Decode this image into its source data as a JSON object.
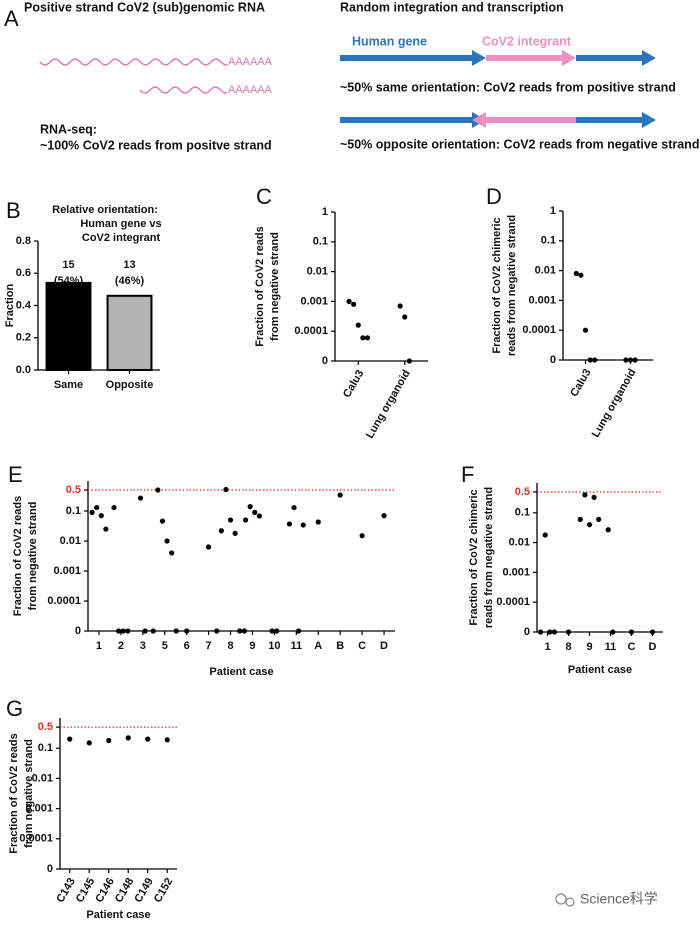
{
  "figure": {
    "diagram": {
      "panel": "A",
      "left_title": "Positive strand CoV2 (sub)genomic RNA",
      "polya": [
        "AAAAAA",
        "AAAAAA"
      ],
      "rnaseq": [
        "RNA-seq:",
        "~100% CoV2 reads from positve strand"
      ],
      "right_title": "Random integration and transcription",
      "human_gene": "Human gene",
      "integrant": "CoV2 integrant",
      "same": "~50% same orientation: CoV2 reads from positive strand",
      "opposite": "~50% opposite orientation: CoV2 reads from negative strand"
    },
    "watermark": "Science科学"
  },
  "chart_data": [
    {
      "panel": "B",
      "type": "bar",
      "subtitle": [
        "Relative orientation:",
        "Human gene vs",
        "CoV2 integrant"
      ],
      "ylabel": "Fraction",
      "categories": [
        "Same",
        "Opposite"
      ],
      "values": [
        0.54,
        0.46
      ],
      "colors": [
        "#000000",
        "#b3b3b3"
      ],
      "bar_labels": [
        [
          "15",
          "(54%)"
        ],
        [
          "13",
          "(46%)"
        ]
      ],
      "ylim": [
        0,
        0.8
      ],
      "yticks": [
        {
          "value": 0,
          "label": "0.0"
        },
        0.2,
        0.4,
        0.6,
        0.8
      ]
    },
    {
      "panel": "C",
      "type": "strip",
      "ylabel": [
        "Fraction of CoV2 reads",
        "from negative strand"
      ],
      "yscale": "log",
      "color": "#000000",
      "categories": [
        "Calu3",
        "Lung organoid"
      ],
      "values": [
        [
          0.001,
          0.0008,
          0.00016,
          6e-05,
          6e-05
        ],
        [
          0.0007,
          0.0003,
          0
        ]
      ],
      "ylim": [
        0,
        1
      ],
      "yticks": [
        0,
        0.0001,
        0.001,
        0.01,
        0.1,
        1
      ]
    },
    {
      "panel": "D",
      "type": "strip",
      "ylabel": [
        "Fraction of CoV2 chimeric",
        "reads from negative strand"
      ],
      "yscale": "log",
      "color": "#000000",
      "categories": [
        "Calu3",
        "Lung organoid"
      ],
      "values": [
        [
          0.008,
          0.007,
          0.0001,
          0,
          0
        ],
        [
          0,
          0,
          0
        ]
      ],
      "ylim": [
        0,
        1
      ],
      "yticks": [
        0,
        0.0001,
        0.001,
        0.01,
        0.1,
        1
      ]
    },
    {
      "panel": "E",
      "type": "strip",
      "ylabel": [
        "Fraction of CoV2 reads",
        "from negative strand"
      ],
      "xlabel": "Patient case",
      "yscale": "log",
      "color": "#000000",
      "categories": [
        "1",
        "2",
        "3",
        "5",
        "6",
        "7",
        "8",
        "9",
        "10",
        "11",
        "A",
        "B",
        "C",
        "D"
      ],
      "values": [
        [
          0.09,
          0.13,
          0.07,
          0.025
        ],
        [
          0.13,
          0,
          0,
          0
        ],
        [
          0.27,
          0
        ],
        [
          0,
          0.5,
          0.046,
          0.01,
          0.004,
          0
        ],
        [
          0
        ],
        [
          0.0063
        ],
        [
          0,
          0.022,
          0.52,
          0.05,
          0.018,
          0,
          0
        ],
        [
          0.05,
          0.14,
          0.09,
          0.068
        ],
        [
          0,
          0
        ],
        [
          0.037,
          0.13,
          0,
          0.034
        ],
        [
          0.043
        ],
        [
          0.34
        ],
        [
          0.015
        ],
        [
          0.07
        ]
      ],
      "reference_line": {
        "value": 0.5,
        "color": "#e0302a"
      },
      "ylim": [
        0,
        1
      ],
      "yticks": [
        0,
        0.0001,
        0.001,
        0.01,
        0.1,
        0.5
      ]
    },
    {
      "panel": "F",
      "type": "strip",
      "ylabel": [
        "Fraction of CoV2 chimeric",
        "reads from negative strand"
      ],
      "xlabel": "Patient case",
      "yscale": "log",
      "color": "#000000",
      "categories": [
        "1",
        "8",
        "9",
        "11",
        "C",
        "D"
      ],
      "values": [
        [
          0,
          0.018,
          0,
          0
        ],
        [
          0
        ],
        [
          0.06,
          0.4,
          0.04,
          0.33,
          0.06
        ],
        [
          0.027,
          0
        ],
        [
          0
        ],
        [
          0
        ]
      ],
      "reference_line": {
        "value": 0.5,
        "color": "#e0302a"
      },
      "ylim": [
        0,
        1
      ],
      "yticks": [
        0,
        0.0001,
        0.001,
        0.01,
        0.1,
        0.5
      ]
    },
    {
      "panel": "G",
      "type": "strip",
      "ylabel": [
        "Fraction of CoV2 reads",
        "from negative strand"
      ],
      "xlabel": "Patient case",
      "yscale": "log",
      "color": "#000000",
      "categories": [
        "C143",
        "C145",
        "C146",
        "C148",
        "C149",
        "C152"
      ],
      "values": [
        [
          0.2
        ],
        [
          0.15
        ],
        [
          0.18
        ],
        [
          0.22
        ],
        [
          0.2
        ],
        [
          0.19
        ]
      ],
      "reference_line": {
        "value": 0.5,
        "color": "#e0302a"
      },
      "ylim": [
        0,
        1
      ],
      "yticks": [
        0,
        0.0001,
        0.001,
        0.01,
        0.1,
        0.5
      ]
    }
  ]
}
